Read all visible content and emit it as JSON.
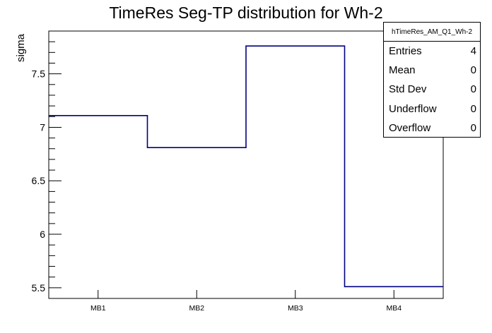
{
  "chart_data": {
    "type": "bar",
    "style": "step-histogram-outline",
    "title": "TimeRes Seg-TP distribution for Wh-2",
    "categories": [
      "MB1",
      "MB2",
      "MB3",
      "MB4"
    ],
    "values": [
      7.11,
      6.81,
      7.76,
      5.51
    ],
    "xlabel": "",
    "ylabel": "sigma",
    "ylim": [
      5.4,
      7.9
    ],
    "yticks": [
      {
        "value": 5.5,
        "label": "5.5"
      },
      {
        "value": 6.0,
        "label": "6"
      },
      {
        "value": 6.5,
        "label": "6.5"
      },
      {
        "value": 7.0,
        "label": "7"
      },
      {
        "value": 7.5,
        "label": "7.5"
      }
    ],
    "minor_tick_step": 0.1,
    "grid": false,
    "legend": false,
    "line_color": "#000080",
    "frame_color": "#000000",
    "background_color": "#ffffff"
  },
  "stats_box": {
    "title": "hTimeRes_AM_Q1_Wh-2",
    "rows": [
      {
        "label": "Entries",
        "value": "4"
      },
      {
        "label": "Mean",
        "value": "0"
      },
      {
        "label": "Std Dev",
        "value": "0"
      },
      {
        "label": "Underflow",
        "value": "0"
      },
      {
        "label": "Overflow",
        "value": "0"
      }
    ]
  }
}
